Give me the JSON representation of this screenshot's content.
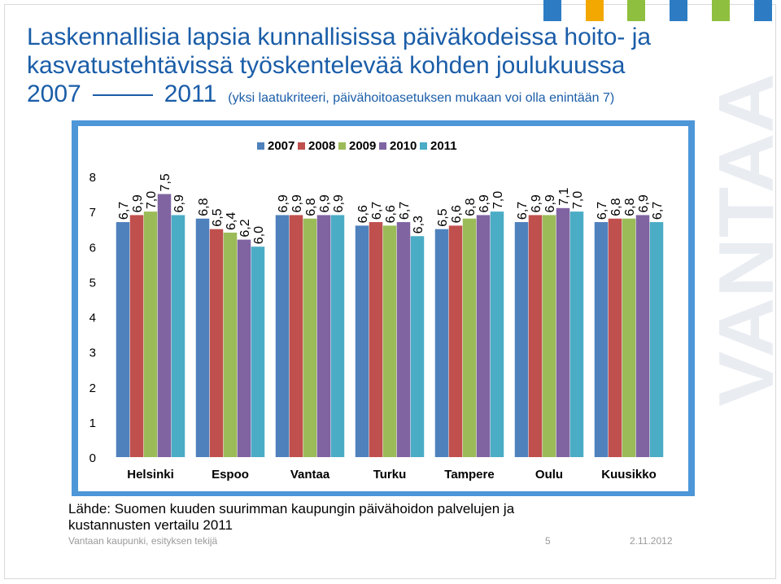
{
  "title": {
    "line1": "Laskennallisia lapsia kunnallisissa päiväkodeissa hoito- ja",
    "line2": "kasvatustehtävissä työskentelevää kohden joulukuussa",
    "year_start": "2007",
    "year_end": "2011",
    "subtitle": "(yksi laatukriteeri, päivähoitoasetuksen mukaan voi olla enintään 7)"
  },
  "watermark": "VANTAA",
  "colors": {
    "title": "#1a5da8",
    "chart_border": "#4d96d8",
    "squares": [
      "#2d7cc3",
      "#f2a800",
      "#8fbf3f",
      "#2d7cc3",
      "#8fbf3f",
      "#2d7cc3"
    ]
  },
  "chart_data": {
    "type": "bar",
    "categories": [
      "Helsinki",
      "Espoo",
      "Vantaa",
      "Turku",
      "Tampere",
      "Oulu",
      "Kuusikko"
    ],
    "series": [
      {
        "name": "2007",
        "color": "#4f81bd",
        "values": [
          6.7,
          6.8,
          6.9,
          6.6,
          6.5,
          6.7,
          6.7
        ]
      },
      {
        "name": "2008",
        "color": "#c0504d",
        "values": [
          6.9,
          6.5,
          6.9,
          6.7,
          6.6,
          6.9,
          6.8
        ]
      },
      {
        "name": "2009",
        "color": "#9bbb59",
        "values": [
          7.0,
          6.4,
          6.8,
          6.6,
          6.8,
          6.9,
          6.8
        ]
      },
      {
        "name": "2010",
        "color": "#8064a2",
        "values": [
          7.5,
          6.2,
          6.9,
          6.7,
          6.9,
          7.1,
          6.9
        ]
      },
      {
        "name": "2011",
        "color": "#4bacc6",
        "values": [
          6.9,
          6.0,
          6.9,
          6.3,
          7.0,
          7.0,
          6.7
        ]
      }
    ],
    "data_labels": [
      [
        "6,7",
        "6,9",
        "7,0",
        "7,5",
        "6,9"
      ],
      [
        "6,8",
        "6,5",
        "6,4",
        "6,2",
        "6,0"
      ],
      [
        "6,9",
        "6,9",
        "6,8",
        "6,9",
        "6,9"
      ],
      [
        "6,6",
        "6,7",
        "6,6",
        "6,7",
        "6,3"
      ],
      [
        "6,5",
        "6,6",
        "6,8",
        "6,9",
        "7,0"
      ],
      [
        "6,7",
        "6,9",
        "6,9",
        "7,1",
        "7,0"
      ],
      [
        "6,7",
        "6,8",
        "6,8",
        "6,9",
        "6,7"
      ]
    ],
    "yticks": [
      "0",
      "1",
      "2",
      "3",
      "4",
      "5",
      "6",
      "7",
      "8"
    ],
    "ylim": [
      0,
      8
    ],
    "legend_position": "top",
    "grid": false
  },
  "source": {
    "line1": "Lähde: Suomen kuuden suurimman kaupungin päivähoidon palvelujen ja",
    "line2": "kustannusten vertailu 2011"
  },
  "footer": {
    "organization": "Vantaan kaupunki, esityksen tekijä",
    "page": "5",
    "date": "2.11.2012"
  }
}
